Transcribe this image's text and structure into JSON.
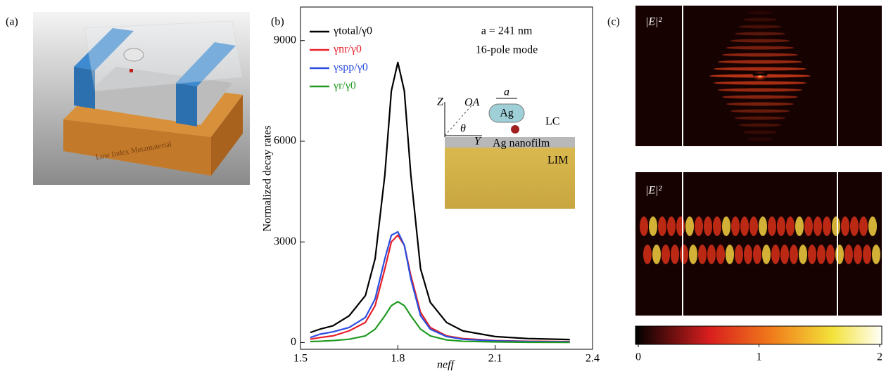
{
  "panel_labels": [
    "(a)",
    "(b)",
    "(c)"
  ],
  "panel_a": {
    "caption": "Low Index Metamaterial"
  },
  "chart_data": {
    "type": "line",
    "x_label": "neff",
    "y_label": "Normalized decay rates",
    "xlim": [
      1.5,
      2.4
    ],
    "xticks": [
      1.5,
      1.8,
      2.1,
      2.4
    ],
    "ylim": [
      -200,
      10000
    ],
    "yticks": [
      0,
      3000,
      6000,
      9000
    ],
    "legend": "upper left",
    "annotations": [
      "a = 241 nm",
      "16-pole mode"
    ],
    "x": [
      1.53,
      1.56,
      1.6,
      1.65,
      1.7,
      1.73,
      1.76,
      1.78,
      1.8,
      1.82,
      1.84,
      1.87,
      1.9,
      1.95,
      2.0,
      2.1,
      2.2,
      2.33
    ],
    "series": [
      {
        "name": "γtotal/γ0",
        "color": "#000000",
        "values": [
          300,
          400,
          500,
          800,
          1400,
          2500,
          5000,
          7500,
          8350,
          7500,
          5000,
          2200,
          1200,
          600,
          350,
          180,
          120,
          90
        ]
      },
      {
        "name": "γnr/γ0",
        "color": "#e8202a",
        "values": [
          100,
          150,
          200,
          350,
          600,
          1100,
          2200,
          3000,
          3200,
          2900,
          2000,
          900,
          450,
          200,
          120,
          60,
          40,
          30
        ]
      },
      {
        "name": "γspp/γ0",
        "color": "#2a4de0",
        "values": [
          150,
          250,
          320,
          450,
          750,
          1300,
          2500,
          3200,
          3300,
          2900,
          1900,
          800,
          400,
          180,
          100,
          50,
          30,
          20
        ]
      },
      {
        "name": "γr/γ0",
        "color": "#1f9a1f",
        "values": [
          30,
          40,
          60,
          100,
          200,
          400,
          800,
          1100,
          1220,
          1100,
          800,
          400,
          200,
          80,
          40,
          20,
          10,
          5
        ]
      }
    ]
  },
  "inset": {
    "z": "Z",
    "oa": "OA",
    "theta": "θ",
    "y": "Y",
    "a": "a",
    "ag": "Ag",
    "lc": "LC",
    "film": "Ag nanofilm",
    "lim": "LIM"
  },
  "panel_c": {
    "field_labels": [
      "|E|²",
      "|E|²"
    ],
    "colorbar": {
      "lim": [
        0,
        2
      ],
      "ticks": [
        0,
        1,
        2
      ]
    }
  }
}
